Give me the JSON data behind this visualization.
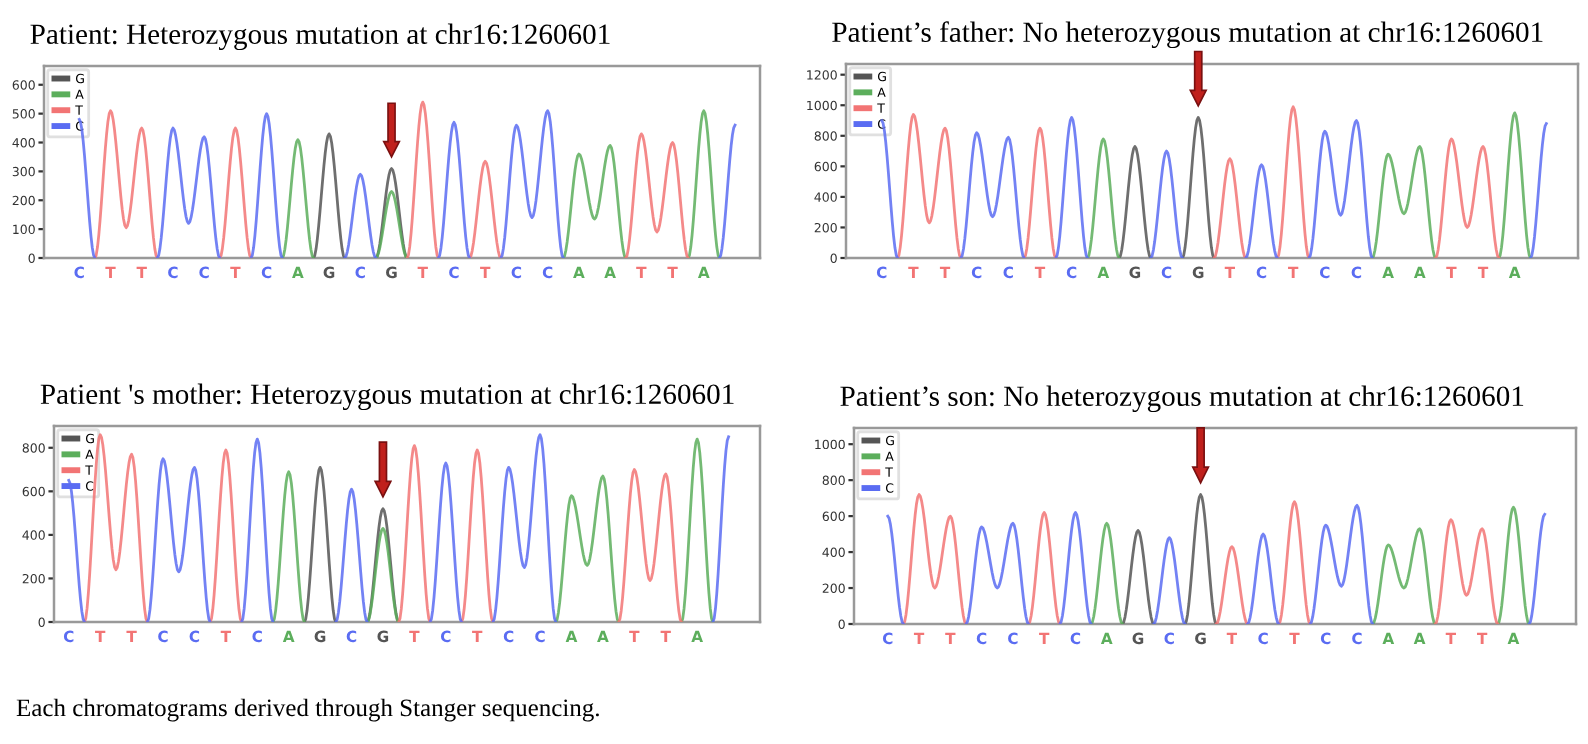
{
  "chart_data": [
    {
      "type": "line",
      "title": "Patient: Heterozygous mutation at chr16:1260601",
      "legend": "top left",
      "marker": "none",
      "line_style": "solid",
      "grid": false,
      "ylim": [
        0,
        665
      ],
      "yticks": [
        0,
        100,
        200,
        300,
        400,
        500,
        600
      ],
      "categories": [
        "C",
        null,
        "T",
        null,
        "T",
        null,
        "C",
        null,
        "C",
        null,
        "T",
        null,
        "C",
        null,
        "A",
        null,
        "G",
        null,
        "C",
        null,
        "G",
        null,
        "T",
        null,
        "C",
        null,
        "T",
        null,
        "C",
        null,
        "C",
        null,
        "A",
        null,
        "A",
        null,
        "T",
        null,
        "T",
        null,
        "A",
        null,
        null
      ],
      "series": [
        {
          "name": "G",
          "color": "#555555",
          "values": [
            null,
            null,
            null,
            null,
            null,
            null,
            null,
            null,
            null,
            null,
            null,
            null,
            null,
            null,
            null,
            0,
            430,
            0,
            null,
            0,
            310,
            0,
            null,
            null,
            null,
            null,
            null,
            null,
            null,
            null,
            null,
            null,
            null,
            null,
            null,
            null,
            null,
            null,
            null,
            null,
            null,
            null,
            null
          ]
        },
        {
          "name": "A",
          "color": "#5cae5c",
          "values": [
            null,
            null,
            null,
            null,
            null,
            null,
            null,
            null,
            null,
            null,
            null,
            null,
            null,
            0,
            410,
            0,
            null,
            null,
            null,
            0,
            230,
            0,
            null,
            null,
            null,
            null,
            null,
            null,
            null,
            null,
            null,
            0,
            360,
            135,
            390,
            0,
            null,
            null,
            null,
            0,
            510,
            0,
            null
          ]
        },
        {
          "name": "T",
          "color": "#f27474",
          "values": [
            null,
            0,
            510,
            105,
            450,
            0,
            null,
            null,
            null,
            0,
            450,
            0,
            null,
            null,
            null,
            null,
            null,
            null,
            null,
            null,
            null,
            0,
            540,
            0,
            null,
            0,
            335,
            0,
            null,
            null,
            null,
            null,
            null,
            null,
            null,
            0,
            430,
            90,
            400,
            0,
            null,
            null,
            null
          ]
        },
        {
          "name": "C",
          "color": "#5a6cf2",
          "values": [
            480,
            0,
            null,
            null,
            null,
            0,
            450,
            120,
            420,
            0,
            null,
            0,
            500,
            0,
            null,
            null,
            null,
            0,
            290,
            0,
            null,
            null,
            null,
            0,
            470,
            0,
            null,
            0,
            460,
            140,
            510,
            0,
            null,
            null,
            null,
            null,
            null,
            null,
            null,
            null,
            null,
            0,
            460
          ]
        }
      ]
    },
    {
      "type": "line",
      "title": "Patient’s father: No heterozygous mutation at chr16:1260601",
      "legend": "top left",
      "marker": "none",
      "line_style": "solid",
      "grid": false,
      "ylim": [
        0,
        1270
      ],
      "yticks": [
        0,
        200,
        400,
        600,
        800,
        1000,
        1200
      ],
      "categories": [
        "C",
        null,
        "T",
        null,
        "T",
        null,
        "C",
        null,
        "C",
        null,
        "T",
        null,
        "C",
        null,
        "A",
        null,
        "G",
        null,
        "C",
        null,
        "G",
        null,
        "T",
        null,
        "C",
        null,
        "T",
        null,
        "C",
        null,
        "C",
        null,
        "A",
        null,
        "A",
        null,
        "T",
        null,
        "T",
        null,
        "A",
        null,
        null
      ],
      "series": [
        {
          "name": "G",
          "color": "#555555",
          "values": [
            null,
            null,
            null,
            null,
            null,
            null,
            null,
            null,
            null,
            null,
            null,
            null,
            null,
            null,
            null,
            0,
            730,
            0,
            null,
            0,
            920,
            0,
            null,
            null,
            null,
            null,
            null,
            null,
            null,
            null,
            null,
            null,
            null,
            null,
            null,
            null,
            null,
            null,
            null,
            null,
            null,
            null,
            null
          ]
        },
        {
          "name": "A",
          "color": "#5cae5c",
          "values": [
            null,
            null,
            null,
            null,
            null,
            null,
            null,
            null,
            null,
            null,
            null,
            null,
            null,
            0,
            780,
            0,
            null,
            null,
            null,
            null,
            null,
            null,
            null,
            null,
            null,
            null,
            null,
            null,
            null,
            null,
            null,
            0,
            680,
            290,
            730,
            0,
            null,
            null,
            null,
            0,
            950,
            0,
            null
          ]
        },
        {
          "name": "T",
          "color": "#f27474",
          "values": [
            null,
            0,
            940,
            230,
            850,
            0,
            null,
            null,
            null,
            0,
            850,
            0,
            null,
            null,
            null,
            null,
            null,
            null,
            null,
            null,
            null,
            0,
            650,
            0,
            null,
            0,
            990,
            0,
            null,
            null,
            null,
            null,
            null,
            null,
            null,
            0,
            780,
            200,
            730,
            0,
            null,
            null,
            null
          ]
        },
        {
          "name": "C",
          "color": "#5a6cf2",
          "values": [
            900,
            0,
            null,
            null,
            null,
            0,
            820,
            270,
            790,
            0,
            null,
            0,
            920,
            0,
            null,
            null,
            null,
            0,
            700,
            0,
            null,
            null,
            null,
            0,
            610,
            0,
            null,
            0,
            830,
            280,
            900,
            0,
            null,
            null,
            null,
            null,
            null,
            null,
            null,
            null,
            null,
            0,
            880
          ]
        }
      ]
    },
    {
      "type": "line",
      "title": "Patient 's mother: Heterozygous mutation at chr16:1260601",
      "legend": "top left",
      "marker": "none",
      "line_style": "solid",
      "grid": false,
      "ylim": [
        0,
        900
      ],
      "yticks": [
        0,
        200,
        400,
        600,
        800
      ],
      "categories": [
        "C",
        null,
        "T",
        null,
        "T",
        null,
        "C",
        null,
        "C",
        null,
        "T",
        null,
        "C",
        null,
        "A",
        null,
        "G",
        null,
        "C",
        null,
        "G",
        null,
        "T",
        null,
        "C",
        null,
        "T",
        null,
        "C",
        null,
        "C",
        null,
        "A",
        null,
        "A",
        null,
        "T",
        null,
        "T",
        null,
        "A",
        null,
        null
      ],
      "annotations": [
        "Each chromatograms derived through Stanger sequencing."
      ],
      "series": [
        {
          "name": "G",
          "color": "#555555",
          "values": [
            null,
            null,
            null,
            null,
            null,
            null,
            null,
            null,
            null,
            null,
            null,
            null,
            null,
            null,
            null,
            0,
            710,
            0,
            null,
            0,
            520,
            0,
            null,
            null,
            null,
            null,
            null,
            null,
            null,
            null,
            null,
            null,
            null,
            null,
            null,
            null,
            null,
            null,
            null,
            null,
            null,
            null,
            null
          ]
        },
        {
          "name": "A",
          "color": "#5cae5c",
          "values": [
            null,
            null,
            null,
            null,
            null,
            null,
            null,
            null,
            null,
            null,
            null,
            null,
            null,
            0,
            690,
            0,
            null,
            null,
            null,
            0,
            430,
            0,
            null,
            null,
            null,
            null,
            null,
            null,
            null,
            null,
            null,
            0,
            580,
            260,
            670,
            0,
            null,
            null,
            null,
            0,
            840,
            0,
            null
          ]
        },
        {
          "name": "T",
          "color": "#f27474",
          "values": [
            null,
            0,
            860,
            240,
            770,
            0,
            null,
            null,
            null,
            0,
            790,
            0,
            null,
            null,
            null,
            null,
            null,
            null,
            null,
            null,
            null,
            0,
            810,
            0,
            null,
            0,
            790,
            0,
            null,
            null,
            null,
            null,
            null,
            null,
            null,
            0,
            700,
            190,
            680,
            0,
            null,
            null,
            null
          ]
        },
        {
          "name": "C",
          "color": "#5a6cf2",
          "values": [
            650,
            0,
            null,
            null,
            null,
            0,
            750,
            230,
            710,
            0,
            null,
            0,
            840,
            0,
            null,
            null,
            null,
            0,
            610,
            0,
            null,
            null,
            null,
            0,
            730,
            0,
            null,
            0,
            710,
            250,
            860,
            0,
            null,
            null,
            null,
            null,
            null,
            null,
            null,
            null,
            null,
            0,
            850
          ]
        }
      ]
    },
    {
      "type": "line",
      "title": "Patient’s son: No heterozygous mutation at chr16:1260601",
      "legend": "top left",
      "marker": "none",
      "line_style": "solid",
      "grid": false,
      "ylim": [
        0,
        1090
      ],
      "yticks": [
        0,
        200,
        400,
        600,
        800,
        1000
      ],
      "categories": [
        "C",
        null,
        "T",
        null,
        "T",
        null,
        "C",
        null,
        "C",
        null,
        "T",
        null,
        "C",
        null,
        "A",
        null,
        "G",
        null,
        "C",
        null,
        "G",
        null,
        "T",
        null,
        "C",
        null,
        "T",
        null,
        "C",
        null,
        "C",
        null,
        "A",
        null,
        "A",
        null,
        "T",
        null,
        "T",
        null,
        "A",
        null,
        null
      ],
      "series": [
        {
          "name": "G",
          "color": "#555555",
          "values": [
            null,
            null,
            null,
            null,
            null,
            null,
            null,
            null,
            null,
            null,
            null,
            null,
            null,
            null,
            null,
            0,
            520,
            0,
            null,
            0,
            720,
            0,
            null,
            null,
            null,
            null,
            null,
            null,
            null,
            null,
            null,
            null,
            null,
            null,
            null,
            null,
            null,
            null,
            null,
            null,
            null,
            null,
            null
          ]
        },
        {
          "name": "A",
          "color": "#5cae5c",
          "values": [
            null,
            null,
            null,
            null,
            null,
            null,
            null,
            null,
            null,
            null,
            null,
            null,
            null,
            0,
            560,
            0,
            null,
            null,
            null,
            null,
            null,
            null,
            null,
            null,
            null,
            null,
            null,
            null,
            null,
            null,
            null,
            0,
            440,
            200,
            530,
            0,
            null,
            null,
            null,
            0,
            650,
            0,
            null
          ]
        },
        {
          "name": "T",
          "color": "#f27474",
          "values": [
            null,
            0,
            720,
            200,
            600,
            0,
            null,
            null,
            null,
            0,
            620,
            0,
            null,
            null,
            null,
            null,
            null,
            null,
            null,
            null,
            null,
            0,
            430,
            0,
            null,
            0,
            680,
            0,
            null,
            null,
            null,
            null,
            null,
            null,
            null,
            0,
            580,
            160,
            530,
            0,
            null,
            null,
            null
          ]
        },
        {
          "name": "C",
          "color": "#5a6cf2",
          "values": [
            600,
            0,
            null,
            null,
            null,
            0,
            540,
            200,
            560,
            0,
            null,
            0,
            620,
            0,
            null,
            null,
            null,
            0,
            480,
            0,
            null,
            null,
            null,
            0,
            500,
            0,
            null,
            0,
            550,
            210,
            660,
            0,
            null,
            null,
            null,
            null,
            null,
            null,
            null,
            null,
            null,
            0,
            610
          ]
        }
      ]
    }
  ]
}
